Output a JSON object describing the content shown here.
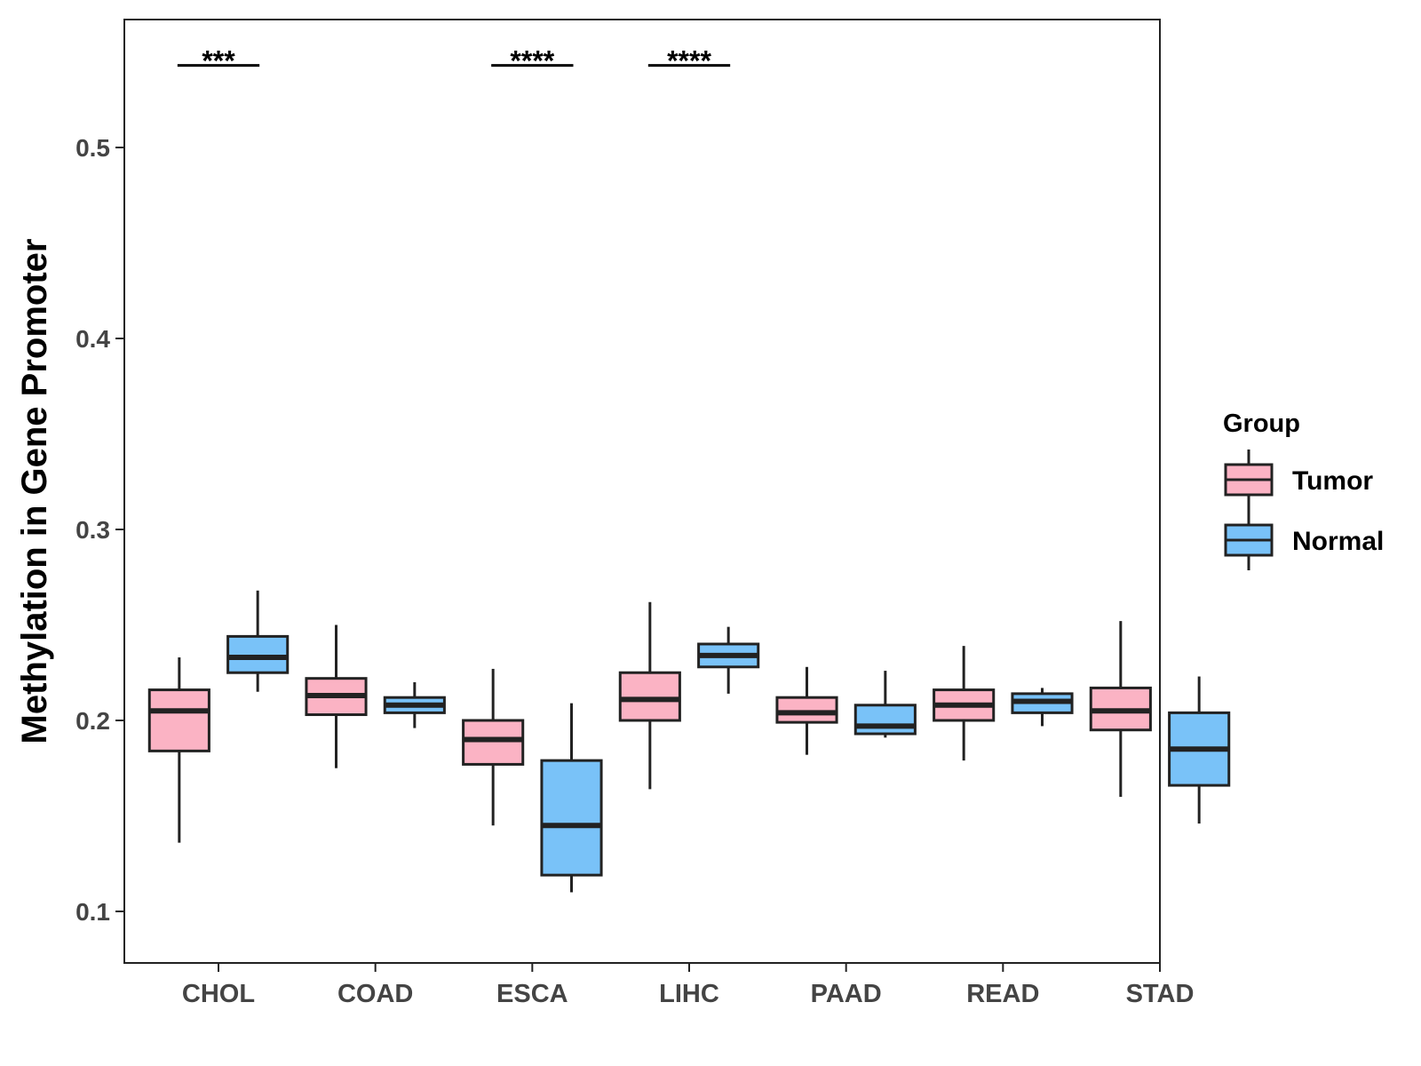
{
  "chart_data": {
    "type": "boxplot",
    "ylabel": "Methylation in Gene Promoter",
    "xlabel": "",
    "ylim": [
      0.073,
      0.567
    ],
    "yticks": [
      {
        "value": 0.1,
        "label": "0.1"
      },
      {
        "value": 0.2,
        "label": "0.2"
      },
      {
        "value": 0.3,
        "label": "0.3"
      },
      {
        "value": 0.4,
        "label": "0.4"
      },
      {
        "value": 0.5,
        "label": "0.5"
      }
    ],
    "categories": [
      "CHOL",
      "COAD",
      "ESCA",
      "LIHC",
      "PAAD",
      "READ",
      "STAD"
    ],
    "legend": {
      "title": "Group",
      "position": "right",
      "entries": [
        {
          "name": "Tumor",
          "color": "#FBB3C4"
        },
        {
          "name": "Normal",
          "color": "#79C2F8"
        }
      ]
    },
    "series": [
      {
        "name": "Tumor",
        "color": "#FBB3C4",
        "boxes": [
          {
            "min": 0.136,
            "q1": 0.184,
            "median": 0.205,
            "q3": 0.216,
            "max": 0.233
          },
          {
            "min": 0.175,
            "q1": 0.203,
            "median": 0.213,
            "q3": 0.222,
            "max": 0.25
          },
          {
            "min": 0.145,
            "q1": 0.177,
            "median": 0.19,
            "q3": 0.2,
            "max": 0.227
          },
          {
            "min": 0.164,
            "q1": 0.2,
            "median": 0.211,
            "q3": 0.225,
            "max": 0.262
          },
          {
            "min": 0.182,
            "q1": 0.199,
            "median": 0.204,
            "q3": 0.212,
            "max": 0.228
          },
          {
            "min": 0.179,
            "q1": 0.2,
            "median": 0.208,
            "q3": 0.216,
            "max": 0.239
          },
          {
            "min": 0.16,
            "q1": 0.195,
            "median": 0.205,
            "q3": 0.217,
            "max": 0.252
          }
        ]
      },
      {
        "name": "Normal",
        "color": "#79C2F8",
        "boxes": [
          {
            "min": 0.215,
            "q1": 0.225,
            "median": 0.233,
            "q3": 0.244,
            "max": 0.268
          },
          {
            "min": 0.196,
            "q1": 0.204,
            "median": 0.208,
            "q3": 0.212,
            "max": 0.22
          },
          {
            "min": 0.11,
            "q1": 0.119,
            "median": 0.145,
            "q3": 0.179,
            "max": 0.209
          },
          {
            "min": 0.214,
            "q1": 0.228,
            "median": 0.234,
            "q3": 0.24,
            "max": 0.249
          },
          {
            "min": 0.191,
            "q1": 0.193,
            "median": 0.197,
            "q3": 0.208,
            "max": 0.226
          },
          {
            "min": 0.197,
            "q1": 0.204,
            "median": 0.21,
            "q3": 0.214,
            "max": 0.217
          },
          {
            "min": 0.146,
            "q1": 0.166,
            "median": 0.185,
            "q3": 0.204,
            "max": 0.223
          }
        ]
      }
    ],
    "significance": [
      {
        "category": "CHOL",
        "label": "***",
        "y": 0.543
      },
      {
        "category": "ESCA",
        "label": "****",
        "y": 0.543
      },
      {
        "category": "LIHC",
        "label": "****",
        "y": 0.543
      }
    ]
  }
}
